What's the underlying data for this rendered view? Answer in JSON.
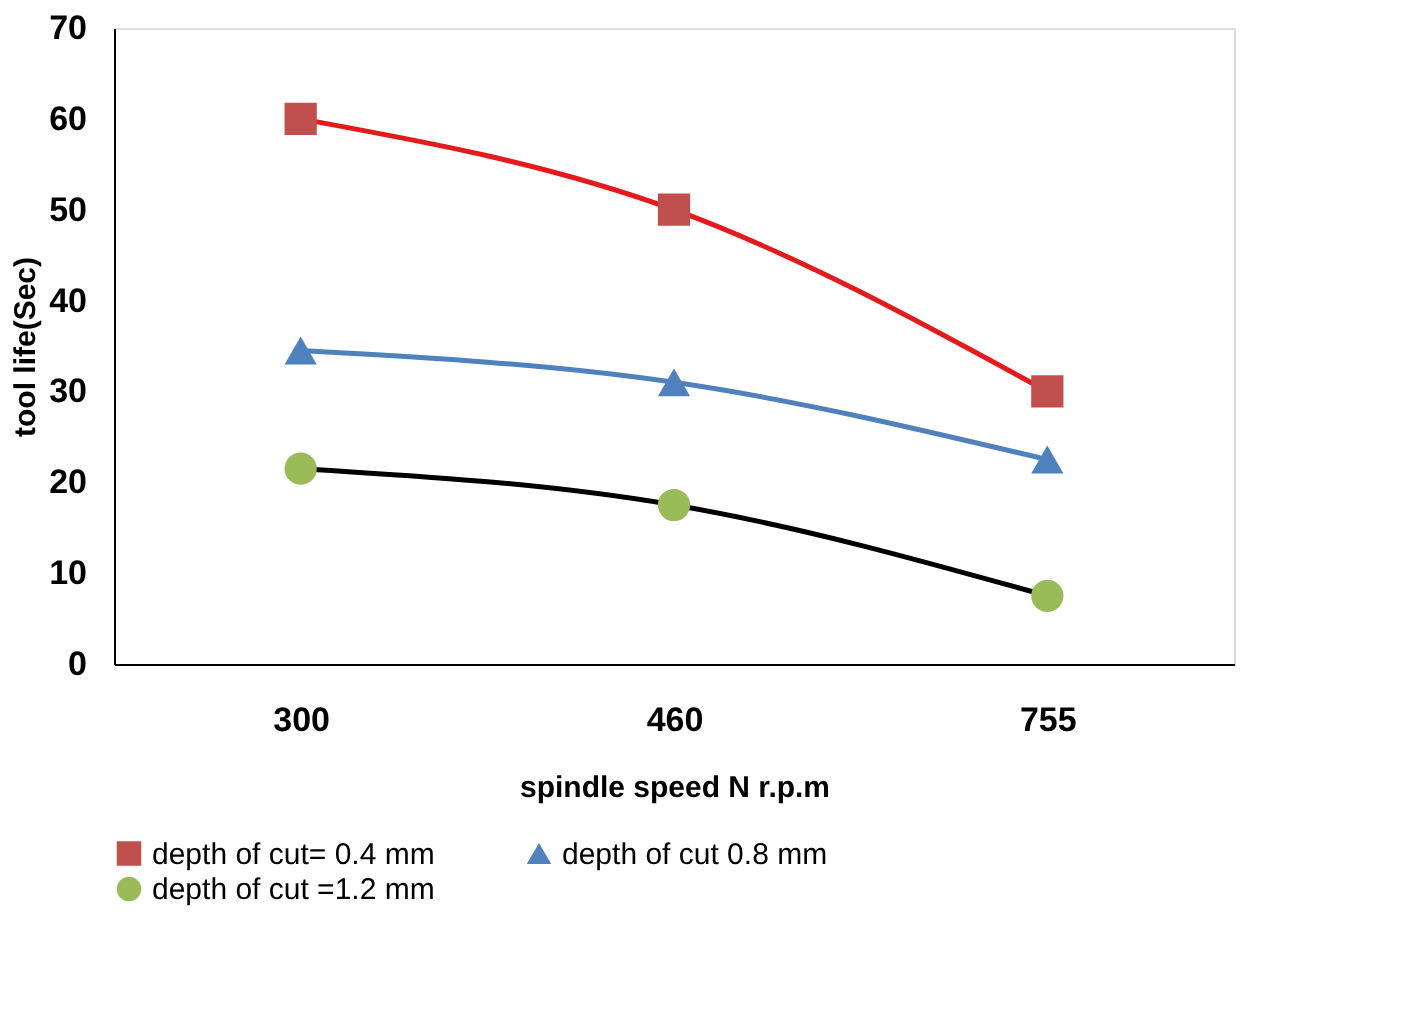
{
  "chart_data": {
    "type": "line",
    "xlabel": "spindle speed N r.p.m",
    "ylabel": "tool life(Sec)",
    "categories": [
      "300",
      "460",
      "755"
    ],
    "series": [
      {
        "name": "depth of cut= 0.4  mm",
        "color": "#e41a1c",
        "colors": [
          "#c0504d",
          "#c0504d",
          "#c0504d"
        ],
        "marker": "square",
        "values": [
          60,
          50,
          30
        ]
      },
      {
        "name": "depth of cut 0.8 mm",
        "color": "#4f81bd",
        "colors": [
          "#4f81bd",
          "#4f81bd",
          "#4f81bd"
        ],
        "marker": "triangle",
        "values": [
          34.5,
          31,
          22.5
        ]
      },
      {
        "name": "depth of cut =1.2 mm",
        "color": "#000000",
        "colors": [
          "#9bbb59",
          "#9bbb59",
          "#9bbb59"
        ],
        "marker": "circle",
        "values": [
          21.5,
          17.5,
          7.5
        ]
      }
    ],
    "ylim": [
      0,
      70
    ],
    "yticks": [
      0,
      10,
      20,
      30,
      40,
      50,
      60,
      70
    ],
    "grid": false,
    "legend": "bottom",
    "line_style": "solid"
  }
}
